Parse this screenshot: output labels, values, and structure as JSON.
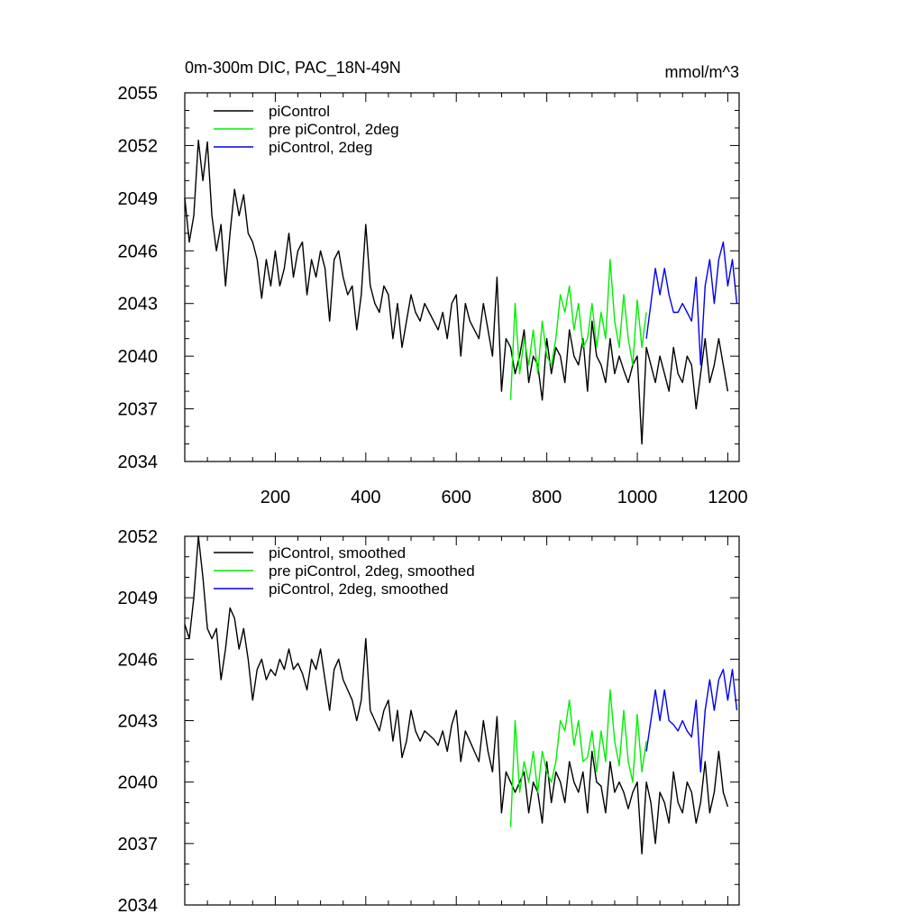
{
  "colors": {
    "pi_control": "#000000",
    "pre_pi_control_2deg": "#00ee00",
    "pi_control_2deg": "#0000ee"
  },
  "chart_data": [
    {
      "type": "line",
      "title_left": "0m-300m DIC, PAC_18N-49N",
      "title_right": "mmol/m^3",
      "xlim": [
        0,
        1225
      ],
      "ylim": [
        2034,
        2055
      ],
      "x_ticks": [
        200,
        400,
        600,
        800,
        1000,
        1200
      ],
      "x_tick_labels": [
        "200",
        "400",
        "600",
        "800",
        "1000",
        "1200"
      ],
      "y_ticks": [
        2034,
        2037,
        2040,
        2043,
        2046,
        2049,
        2052,
        2055
      ],
      "y_tick_labels": [
        "2034",
        "2037",
        "2040",
        "2043",
        "2046",
        "2049",
        "2052",
        "2055"
      ],
      "legend": [
        "piControl",
        "pre piControl, 2deg",
        "piControl, 2deg"
      ],
      "series": [
        {
          "name": "piControl",
          "color_key": "pi_control",
          "x": [
            0,
            10,
            20,
            30,
            40,
            50,
            60,
            70,
            80,
            90,
            100,
            110,
            120,
            130,
            140,
            150,
            160,
            170,
            180,
            190,
            200,
            210,
            220,
            230,
            240,
            250,
            260,
            270,
            280,
            290,
            300,
            310,
            320,
            330,
            340,
            350,
            360,
            370,
            380,
            390,
            400,
            410,
            420,
            430,
            440,
            450,
            460,
            470,
            480,
            490,
            500,
            510,
            520,
            530,
            540,
            550,
            560,
            570,
            580,
            590,
            600,
            610,
            620,
            630,
            640,
            650,
            660,
            670,
            680,
            690,
            700,
            710,
            720,
            730,
            740,
            750,
            760,
            770,
            780,
            790,
            800,
            810,
            820,
            830,
            840,
            850,
            860,
            870,
            880,
            890,
            900,
            910,
            920,
            930,
            940,
            950,
            960,
            970,
            980,
            990,
            1000,
            1010,
            1020,
            1030,
            1040,
            1050,
            1060,
            1070,
            1080,
            1090,
            1100,
            1110,
            1120,
            1130,
            1140,
            1150,
            1160,
            1170,
            1180,
            1190,
            1200
          ],
          "values": [
            2049,
            2046.5,
            2048,
            2052.3,
            2050,
            2052.2,
            2048,
            2046,
            2047.5,
            2044,
            2047,
            2049.5,
            2048,
            2049.2,
            2047,
            2046.5,
            2045.5,
            2043.3,
            2045.5,
            2044,
            2046,
            2044,
            2045,
            2047,
            2044.5,
            2046,
            2046.5,
            2043.5,
            2045.5,
            2044.5,
            2046,
            2045,
            2042,
            2045.5,
            2046,
            2044.5,
            2043.5,
            2044,
            2041.5,
            2043.5,
            2047.5,
            2044,
            2043,
            2042.5,
            2044,
            2043.5,
            2041,
            2043,
            2040.5,
            2042,
            2043.5,
            2042.5,
            2042,
            2043,
            2042.5,
            2042,
            2041.5,
            2042.5,
            2041,
            2043,
            2043.5,
            2040,
            2043,
            2042,
            2041.5,
            2041,
            2043,
            2041.5,
            2040,
            2044.5,
            2038,
            2041,
            2040.5,
            2039,
            2040,
            2041.5,
            2038.5,
            2040,
            2039.5,
            2037.5,
            2041,
            2039,
            2040.5,
            2040,
            2038.5,
            2041.5,
            2040,
            2039.5,
            2041,
            2038,
            2042,
            2040,
            2039.5,
            2038.5,
            2041,
            2039,
            2040,
            2039.2,
            2038.5,
            2039.5,
            2040,
            2035,
            2040.5,
            2039.5,
            2038.5,
            2040,
            2039,
            2038,
            2040.5,
            2039,
            2038.5,
            2040,
            2039.5,
            2037,
            2039,
            2041,
            2038.5,
            2039.5,
            2041,
            2039.5,
            2038
          ]
        },
        {
          "name": "pre piControl, 2deg",
          "color_key": "pre_pi_control_2deg",
          "x": [
            720,
            730,
            740,
            750,
            760,
            770,
            780,
            790,
            800,
            810,
            820,
            830,
            840,
            850,
            860,
            870,
            880,
            890,
            900,
            910,
            920,
            930,
            940,
            950,
            960,
            970,
            980,
            990,
            1000,
            1010,
            1020
          ],
          "values": [
            2037.5,
            2043,
            2039,
            2041,
            2039.5,
            2041.5,
            2039,
            2042,
            2040,
            2039.5,
            2041,
            2043.5,
            2042.5,
            2044,
            2041.5,
            2043,
            2040.5,
            2041,
            2043,
            2040.5,
            2042.5,
            2041,
            2045.5,
            2042,
            2040.5,
            2043.5,
            2041,
            2039.5,
            2043.2,
            2040.5,
            2042.5
          ]
        },
        {
          "name": "piControl, 2deg",
          "color_key": "pi_control_2deg",
          "x": [
            1020,
            1030,
            1040,
            1050,
            1060,
            1070,
            1080,
            1090,
            1100,
            1110,
            1120,
            1130,
            1140,
            1150,
            1160,
            1170,
            1180,
            1190,
            1200,
            1210,
            1220
          ],
          "values": [
            2041,
            2043,
            2045,
            2043.5,
            2045,
            2043.5,
            2042.5,
            2042.5,
            2043,
            2042.5,
            2042,
            2044.5,
            2039.5,
            2044,
            2045.5,
            2043,
            2045.5,
            2046.5,
            2044,
            2045.5,
            2043
          ]
        }
      ]
    },
    {
      "type": "line",
      "xlim": [
        0,
        1225
      ],
      "ylim": [
        2034,
        2052
      ],
      "x_ticks": [
        200,
        400,
        600,
        800,
        1000,
        1200
      ],
      "y_ticks": [
        2034,
        2037,
        2040,
        2043,
        2046,
        2049,
        2052
      ],
      "y_tick_labels": [
        "2034",
        "2037",
        "2040",
        "2043",
        "2046",
        "2049",
        "2052"
      ],
      "legend": [
        "piControl, smoothed",
        "pre piControl, 2deg, smoothed",
        "piControl, 2deg, smoothed"
      ],
      "series": [
        {
          "name": "piControl, smoothed",
          "color_key": "pi_control",
          "x": [
            0,
            10,
            20,
            30,
            40,
            50,
            60,
            70,
            80,
            90,
            100,
            110,
            120,
            130,
            140,
            150,
            160,
            170,
            180,
            190,
            200,
            210,
            220,
            230,
            240,
            250,
            260,
            270,
            280,
            290,
            300,
            310,
            320,
            330,
            340,
            350,
            360,
            370,
            380,
            390,
            400,
            410,
            420,
            430,
            440,
            450,
            460,
            470,
            480,
            490,
            500,
            510,
            520,
            530,
            540,
            550,
            560,
            570,
            580,
            590,
            600,
            610,
            620,
            630,
            640,
            650,
            660,
            670,
            680,
            690,
            700,
            710,
            720,
            730,
            740,
            750,
            760,
            770,
            780,
            790,
            800,
            810,
            820,
            830,
            840,
            850,
            860,
            870,
            880,
            890,
            900,
            910,
            920,
            930,
            940,
            950,
            960,
            970,
            980,
            990,
            1000,
            1010,
            1020,
            1030,
            1040,
            1050,
            1060,
            1070,
            1080,
            1090,
            1100,
            1110,
            1120,
            1130,
            1140,
            1150,
            1160,
            1170,
            1180,
            1190,
            1200
          ],
          "values": [
            2047.7,
            2047,
            2049,
            2052,
            2050,
            2047.5,
            2047,
            2047.5,
            2045,
            2046.5,
            2048.5,
            2048,
            2046.5,
            2047.5,
            2046,
            2044,
            2045.5,
            2046,
            2045,
            2045.5,
            2045.2,
            2046,
            2045.5,
            2046.5,
            2045.5,
            2045.8,
            2045.3,
            2044.5,
            2046,
            2045.5,
            2046.5,
            2045,
            2043.5,
            2045.5,
            2046,
            2045,
            2044.5,
            2044,
            2043,
            2044,
            2047,
            2043.5,
            2043,
            2042.5,
            2043.5,
            2044,
            2042,
            2043.5,
            2041.2,
            2042,
            2043.5,
            2042.5,
            2042,
            2042.5,
            2042.3,
            2042.1,
            2041.8,
            2042.5,
            2041.5,
            2042.8,
            2043.5,
            2041,
            2042.5,
            2042,
            2041.5,
            2041,
            2043,
            2041.5,
            2040.5,
            2043.2,
            2038.5,
            2040.5,
            2040,
            2039.5,
            2040,
            2040.5,
            2038.5,
            2040,
            2039.5,
            2038,
            2041,
            2039,
            2040.5,
            2040,
            2039,
            2041,
            2040,
            2039.5,
            2040.5,
            2038.5,
            2041.5,
            2040,
            2039.8,
            2038.5,
            2041,
            2039.5,
            2040,
            2039.5,
            2038.7,
            2039.5,
            2040,
            2036.5,
            2040,
            2039,
            2037,
            2039.5,
            2039,
            2038,
            2040.5,
            2039,
            2038.5,
            2040,
            2039.5,
            2038,
            2039,
            2041,
            2038.5,
            2039.5,
            2041.5,
            2039.5,
            2038.8
          ]
        },
        {
          "name": "pre piControl, 2deg, smoothed",
          "color_key": "pre_pi_control_2deg",
          "x": [
            720,
            730,
            740,
            750,
            760,
            770,
            780,
            790,
            800,
            810,
            820,
            830,
            840,
            850,
            860,
            870,
            880,
            890,
            900,
            910,
            920,
            930,
            940,
            950,
            960,
            970,
            980,
            990,
            1000,
            1010,
            1020
          ],
          "values": [
            2037.8,
            2043,
            2039.5,
            2041,
            2040,
            2041.5,
            2039.5,
            2041.5,
            2040.5,
            2040,
            2041,
            2043,
            2042.5,
            2044,
            2041.8,
            2043,
            2041,
            2041.2,
            2042.5,
            2040.5,
            2042.5,
            2041,
            2044.5,
            2042,
            2040.8,
            2043.5,
            2041,
            2040,
            2043.3,
            2040.5,
            2042
          ]
        },
        {
          "name": "piControl, 2deg, smoothed",
          "color_key": "pi_control_2deg",
          "x": [
            1020,
            1030,
            1040,
            1050,
            1060,
            1070,
            1080,
            1090,
            1100,
            1110,
            1120,
            1130,
            1140,
            1150,
            1160,
            1170,
            1180,
            1190,
            1200,
            1210,
            1220
          ],
          "values": [
            2041.5,
            2043,
            2044.5,
            2043,
            2044.5,
            2043,
            2042.8,
            2042.5,
            2043,
            2042.5,
            2042.2,
            2044,
            2040.5,
            2043.5,
            2045,
            2043.5,
            2045,
            2045.5,
            2044,
            2045.5,
            2043.5
          ]
        }
      ]
    }
  ]
}
